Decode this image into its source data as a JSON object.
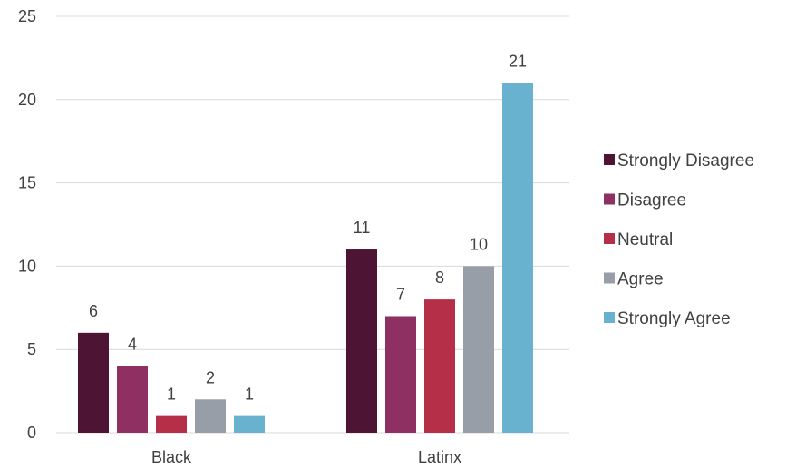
{
  "chart_data": {
    "type": "bar",
    "categories": [
      "Black",
      "Latinx"
    ],
    "series": [
      {
        "name": "Strongly Disagree",
        "color": "#4d1533",
        "values": [
          6,
          11
        ]
      },
      {
        "name": "Disagree",
        "color": "#8e3062",
        "values": [
          4,
          7
        ]
      },
      {
        "name": "Neutral",
        "color": "#b52f48",
        "values": [
          1,
          8
        ]
      },
      {
        "name": "Agree",
        "color": "#979ea8",
        "values": [
          2,
          10
        ]
      },
      {
        "name": "Strongly Agree",
        "color": "#68b2d0",
        "values": [
          1,
          21
        ]
      }
    ],
    "y_ticks": [
      "0",
      "5",
      "10",
      "15",
      "20",
      "25"
    ],
    "ylim": [
      0,
      25
    ],
    "grid": true,
    "legend_position": "right",
    "gridline_color": "#d9d9d9",
    "text_color": "#404040"
  }
}
